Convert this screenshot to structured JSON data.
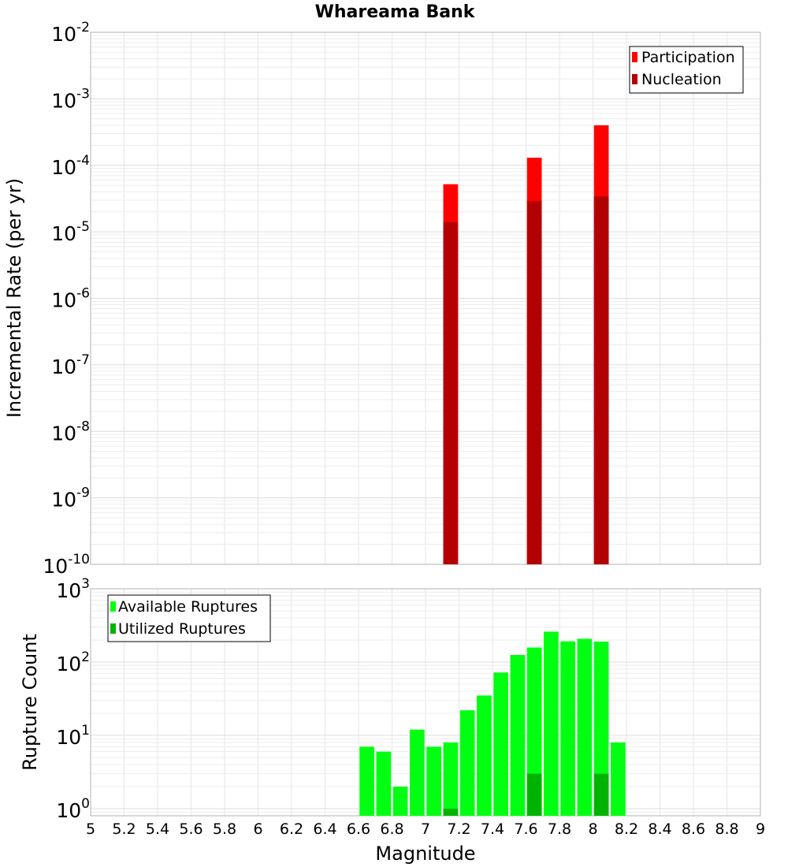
{
  "chart_data": {
    "title": "Whareama Bank",
    "xlabel": "Magnitude",
    "xlim": [
      5,
      9
    ],
    "xticks": [
      "5",
      "5.2",
      "5.4",
      "5.6",
      "5.8",
      "6",
      "6.2",
      "6.4",
      "6.6",
      "6.8",
      "7",
      "7.2",
      "7.4",
      "7.6",
      "7.8",
      "8",
      "8.2",
      "8.4",
      "8.6",
      "8.8",
      "9"
    ],
    "bin_width": 0.1,
    "panels": [
      {
        "type": "bar",
        "ylabel": "Incremental Rate (per yr)",
        "yscale": "log",
        "ylim": [
          1e-10,
          0.01
        ],
        "ytick_exponents": [
          -10,
          -9,
          -8,
          -7,
          -6,
          -5,
          -4,
          -3,
          -2
        ],
        "grid": true,
        "legend_position": "top-right",
        "colors": {
          "participation": "#ff0000",
          "nucleation": "#b30000"
        },
        "series": [
          {
            "name": "Participation",
            "x": [
              7.15,
              7.65,
              8.05
            ],
            "values": [
              5.2e-05,
              0.00013,
              0.0004
            ]
          },
          {
            "name": "Nucleation",
            "x": [
              7.15,
              7.65,
              8.05
            ],
            "values": [
              1.4e-05,
              2.9e-05,
              3.4e-05
            ]
          }
        ]
      },
      {
        "type": "bar",
        "ylabel": "Rupture Count",
        "yscale": "log",
        "ylim": [
          0.8,
          1000
        ],
        "ytick_exponents": [
          0,
          1,
          2,
          3
        ],
        "grid": true,
        "legend_position": "top-left",
        "colors": {
          "available": "#00ff11",
          "utilized": "#00b300"
        },
        "series": [
          {
            "name": "Available Ruptures",
            "x": [
              6.65,
              6.75,
              6.85,
              6.95,
              7.05,
              7.15,
              7.25,
              7.35,
              7.45,
              7.55,
              7.65,
              7.75,
              7.85,
              7.95,
              8.05,
              8.15
            ],
            "values": [
              7,
              6,
              2,
              12,
              7,
              8,
              22,
              35,
              72,
              125,
              158,
              260,
              192,
              208,
              190,
              8
            ]
          },
          {
            "name": "Utilized Ruptures",
            "x": [
              7.15,
              7.65,
              8.05
            ],
            "values": [
              1,
              3,
              3
            ]
          }
        ]
      }
    ]
  }
}
